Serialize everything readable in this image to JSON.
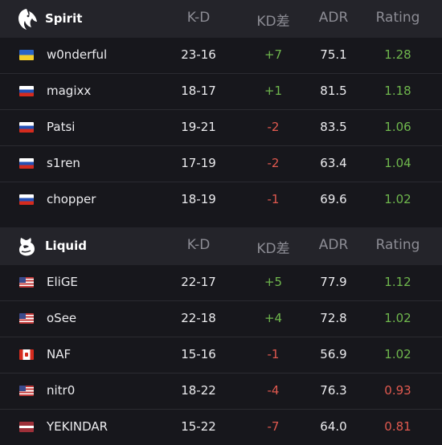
{
  "colors": {
    "positive": "#6fb74d",
    "negative": "#e0594f"
  },
  "columns": {
    "kd": "K-D",
    "diff": "KD差",
    "adr": "ADR",
    "rating": "Rating"
  },
  "teams": [
    {
      "name": "Spirit",
      "logo_icon": "spirit-dragon-logo-icon",
      "players": [
        {
          "name": "w0nderful",
          "flag": "ukraine-flag-icon",
          "kd": "23-16",
          "diff": "+7",
          "diff_sign": "pos",
          "adr": "75.1",
          "rating": "1.28",
          "rating_sign": "pos"
        },
        {
          "name": "magixx",
          "flag": "russia-flag-icon",
          "kd": "18-17",
          "diff": "+1",
          "diff_sign": "pos",
          "adr": "81.5",
          "rating": "1.18",
          "rating_sign": "pos"
        },
        {
          "name": "Patsi",
          "flag": "russia-flag-icon",
          "kd": "19-21",
          "diff": "-2",
          "diff_sign": "neg",
          "adr": "83.5",
          "rating": "1.06",
          "rating_sign": "pos"
        },
        {
          "name": "s1ren",
          "flag": "russia-flag-icon",
          "kd": "17-19",
          "diff": "-2",
          "diff_sign": "neg",
          "adr": "63.4",
          "rating": "1.04",
          "rating_sign": "pos"
        },
        {
          "name": "chopper",
          "flag": "russia-flag-icon",
          "kd": "18-19",
          "diff": "-1",
          "diff_sign": "neg",
          "adr": "69.6",
          "rating": "1.02",
          "rating_sign": "pos"
        }
      ]
    },
    {
      "name": "Liquid",
      "logo_icon": "liquid-horse-logo-icon",
      "players": [
        {
          "name": "EliGE",
          "flag": "usa-flag-icon",
          "kd": "22-17",
          "diff": "+5",
          "diff_sign": "pos",
          "adr": "77.9",
          "rating": "1.12",
          "rating_sign": "pos"
        },
        {
          "name": "oSee",
          "flag": "usa-flag-icon",
          "kd": "22-18",
          "diff": "+4",
          "diff_sign": "pos",
          "adr": "72.8",
          "rating": "1.02",
          "rating_sign": "pos"
        },
        {
          "name": "NAF",
          "flag": "canada-flag-icon",
          "kd": "15-16",
          "diff": "-1",
          "diff_sign": "neg",
          "adr": "56.9",
          "rating": "1.02",
          "rating_sign": "pos"
        },
        {
          "name": "nitr0",
          "flag": "usa-flag-icon",
          "kd": "18-22",
          "diff": "-4",
          "diff_sign": "neg",
          "adr": "76.3",
          "rating": "0.93",
          "rating_sign": "neg"
        },
        {
          "name": "YEKINDAR",
          "flag": "latvia-flag-icon",
          "kd": "15-22",
          "diff": "-7",
          "diff_sign": "neg",
          "adr": "64.0",
          "rating": "0.81",
          "rating_sign": "neg"
        }
      ]
    }
  ]
}
